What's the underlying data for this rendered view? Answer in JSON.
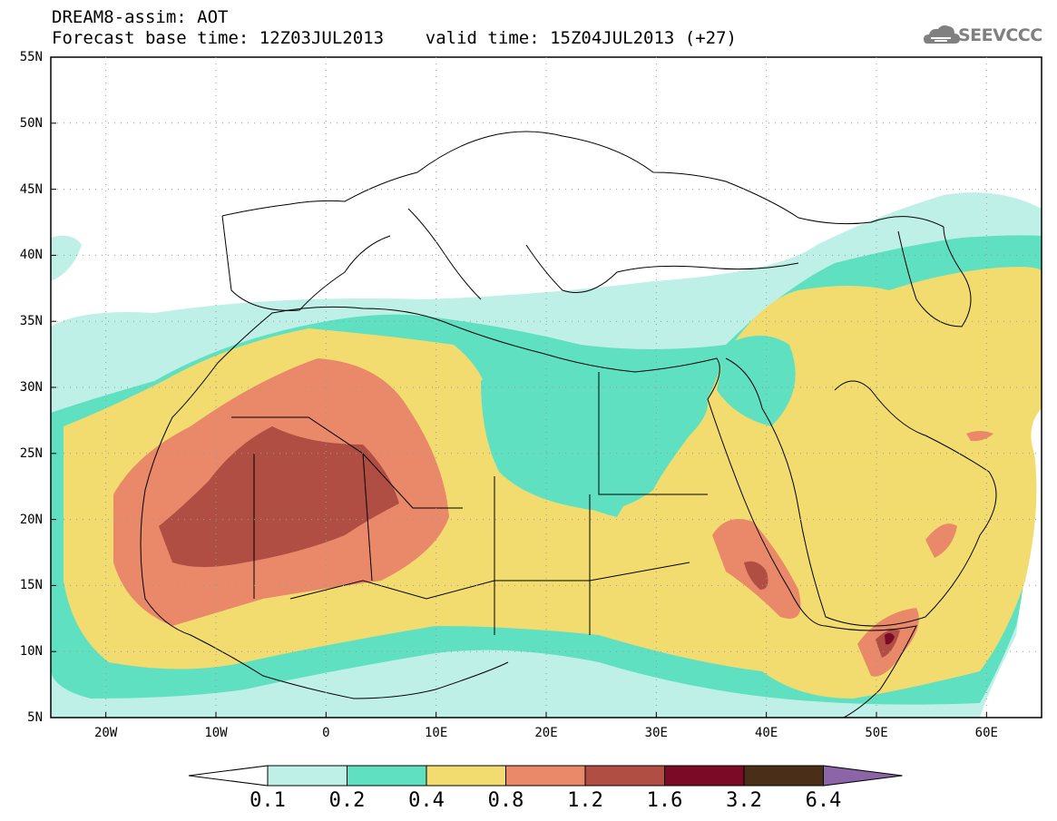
{
  "header": {
    "title_line1": "DREAM8-assim: AOT",
    "title_line2": "Forecast base time: 12Z03JUL2013    valid time: 15Z04JUL2013 (+27)",
    "logo_text": "SEEVCCC"
  },
  "map": {
    "lon_range": [
      -25,
      65
    ],
    "lat_range": [
      5,
      55
    ],
    "lat_labels": [
      "55N",
      "50N",
      "45N",
      "40N",
      "35N",
      "30N",
      "25N",
      "20N",
      "15N",
      "10N",
      "5N"
    ],
    "lon_labels": [
      "20W",
      "10W",
      "0",
      "10E",
      "20E",
      "30E",
      "40E",
      "50E",
      "60E"
    ]
  },
  "colorbar": {
    "levels": [
      "0.1",
      "0.2",
      "0.4",
      "0.8",
      "1.2",
      "1.6",
      "3.2",
      "6.4"
    ],
    "colors": [
      "#bff0e8",
      "#5fe0c0",
      "#f2dc70",
      "#e9896a",
      "#b04e44",
      "#7a0a26",
      "#4a2e18",
      "#8c64a8"
    ],
    "under_color": "#ffffff"
  }
}
